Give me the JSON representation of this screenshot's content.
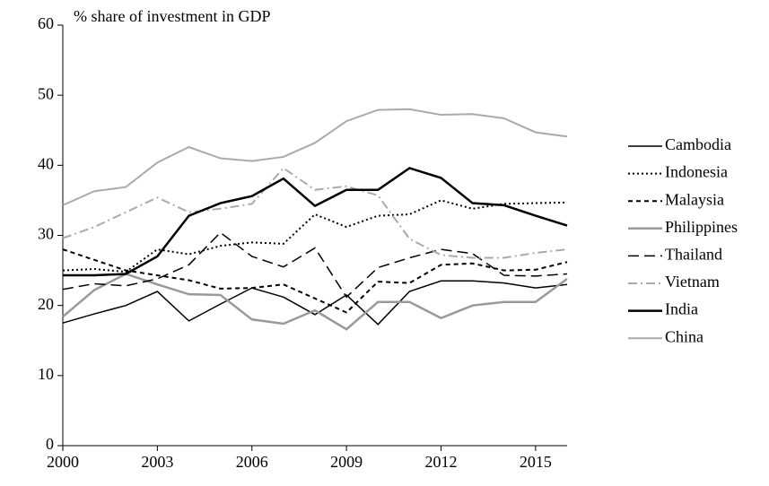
{
  "chart_data": {
    "type": "line",
    "title": "% share of investment in GDP",
    "x": [
      2000,
      2001,
      2002,
      2003,
      2004,
      2005,
      2006,
      2007,
      2008,
      2009,
      2010,
      2011,
      2012,
      2013,
      2014,
      2015,
      2016
    ],
    "xlim": [
      2000,
      2016
    ],
    "xticks": [
      2000,
      2003,
      2006,
      2009,
      2012,
      2015
    ],
    "ylim": [
      0,
      60
    ],
    "yticks": [
      0,
      10,
      20,
      30,
      40,
      50,
      60
    ],
    "legend": "right",
    "series": [
      {
        "name": "Cambodia",
        "color": "#000000",
        "width": 1.5,
        "dash": "none",
        "values": [
          17.5,
          18.8,
          20,
          22,
          17.8,
          20.2,
          22.5,
          21.2,
          18.7,
          21.5,
          17.3,
          22,
          23.5,
          23.5,
          23.2,
          22.5,
          23
        ]
      },
      {
        "name": "Indonesia",
        "color": "#000000",
        "width": 2,
        "dash": "2,3",
        "values": [
          25,
          25.2,
          24.8,
          28,
          27.3,
          28.5,
          29,
          28.8,
          33,
          31.2,
          32.8,
          33,
          35,
          33.8,
          34.5,
          34.6,
          34.7
        ]
      },
      {
        "name": "Malaysia",
        "color": "#000000",
        "width": 2,
        "dash": "5,4",
        "values": [
          28,
          26.5,
          25,
          24.3,
          23.6,
          22.4,
          22.5,
          23,
          21,
          19,
          23.4,
          23.2,
          25.8,
          26,
          25,
          25.1,
          26.2
        ]
      },
      {
        "name": "Philippines",
        "color": "#999999",
        "width": 2.5,
        "dash": "none",
        "values": [
          18.4,
          22.2,
          24.5,
          23,
          21.6,
          21.5,
          18,
          17.4,
          19.3,
          16.6,
          20.5,
          20.5,
          18.2,
          20,
          20.5,
          20.5,
          23.8
        ]
      },
      {
        "name": "Thailand",
        "color": "#000000",
        "width": 1.5,
        "dash": "12,6",
        "values": [
          22.3,
          23.1,
          22.8,
          23.8,
          25.8,
          30.4,
          27,
          25.5,
          28.2,
          21.2,
          25.4,
          26.8,
          28,
          27.4,
          24.3,
          24.2,
          24.5
        ]
      },
      {
        "name": "Vietnam",
        "color": "#aaaaaa",
        "width": 2,
        "dash": "10,4,2,4",
        "values": [
          29.6,
          31.2,
          33.3,
          35.4,
          33.3,
          33.8,
          34.5,
          39.6,
          36.5,
          37,
          35.7,
          29.5,
          27.2,
          26.8,
          26.8,
          27.5,
          28
        ]
      },
      {
        "name": "India",
        "color": "#000000",
        "width": 2.5,
        "dash": "none",
        "values": [
          24.3,
          24.3,
          24.5,
          27,
          32.8,
          34.6,
          35.6,
          38.1,
          34.2,
          36.5,
          36.5,
          39.6,
          38.2,
          34.6,
          34.3,
          32.8,
          31.4
        ]
      },
      {
        "name": "China",
        "color": "#aaaaaa",
        "width": 2,
        "dash": "none",
        "values": [
          34.3,
          36.3,
          36.9,
          40.4,
          42.6,
          41,
          40.6,
          41.2,
          43.2,
          46.3,
          47.9,
          48,
          47.2,
          47.3,
          46.7,
          44.7,
          44.1
        ]
      }
    ]
  }
}
